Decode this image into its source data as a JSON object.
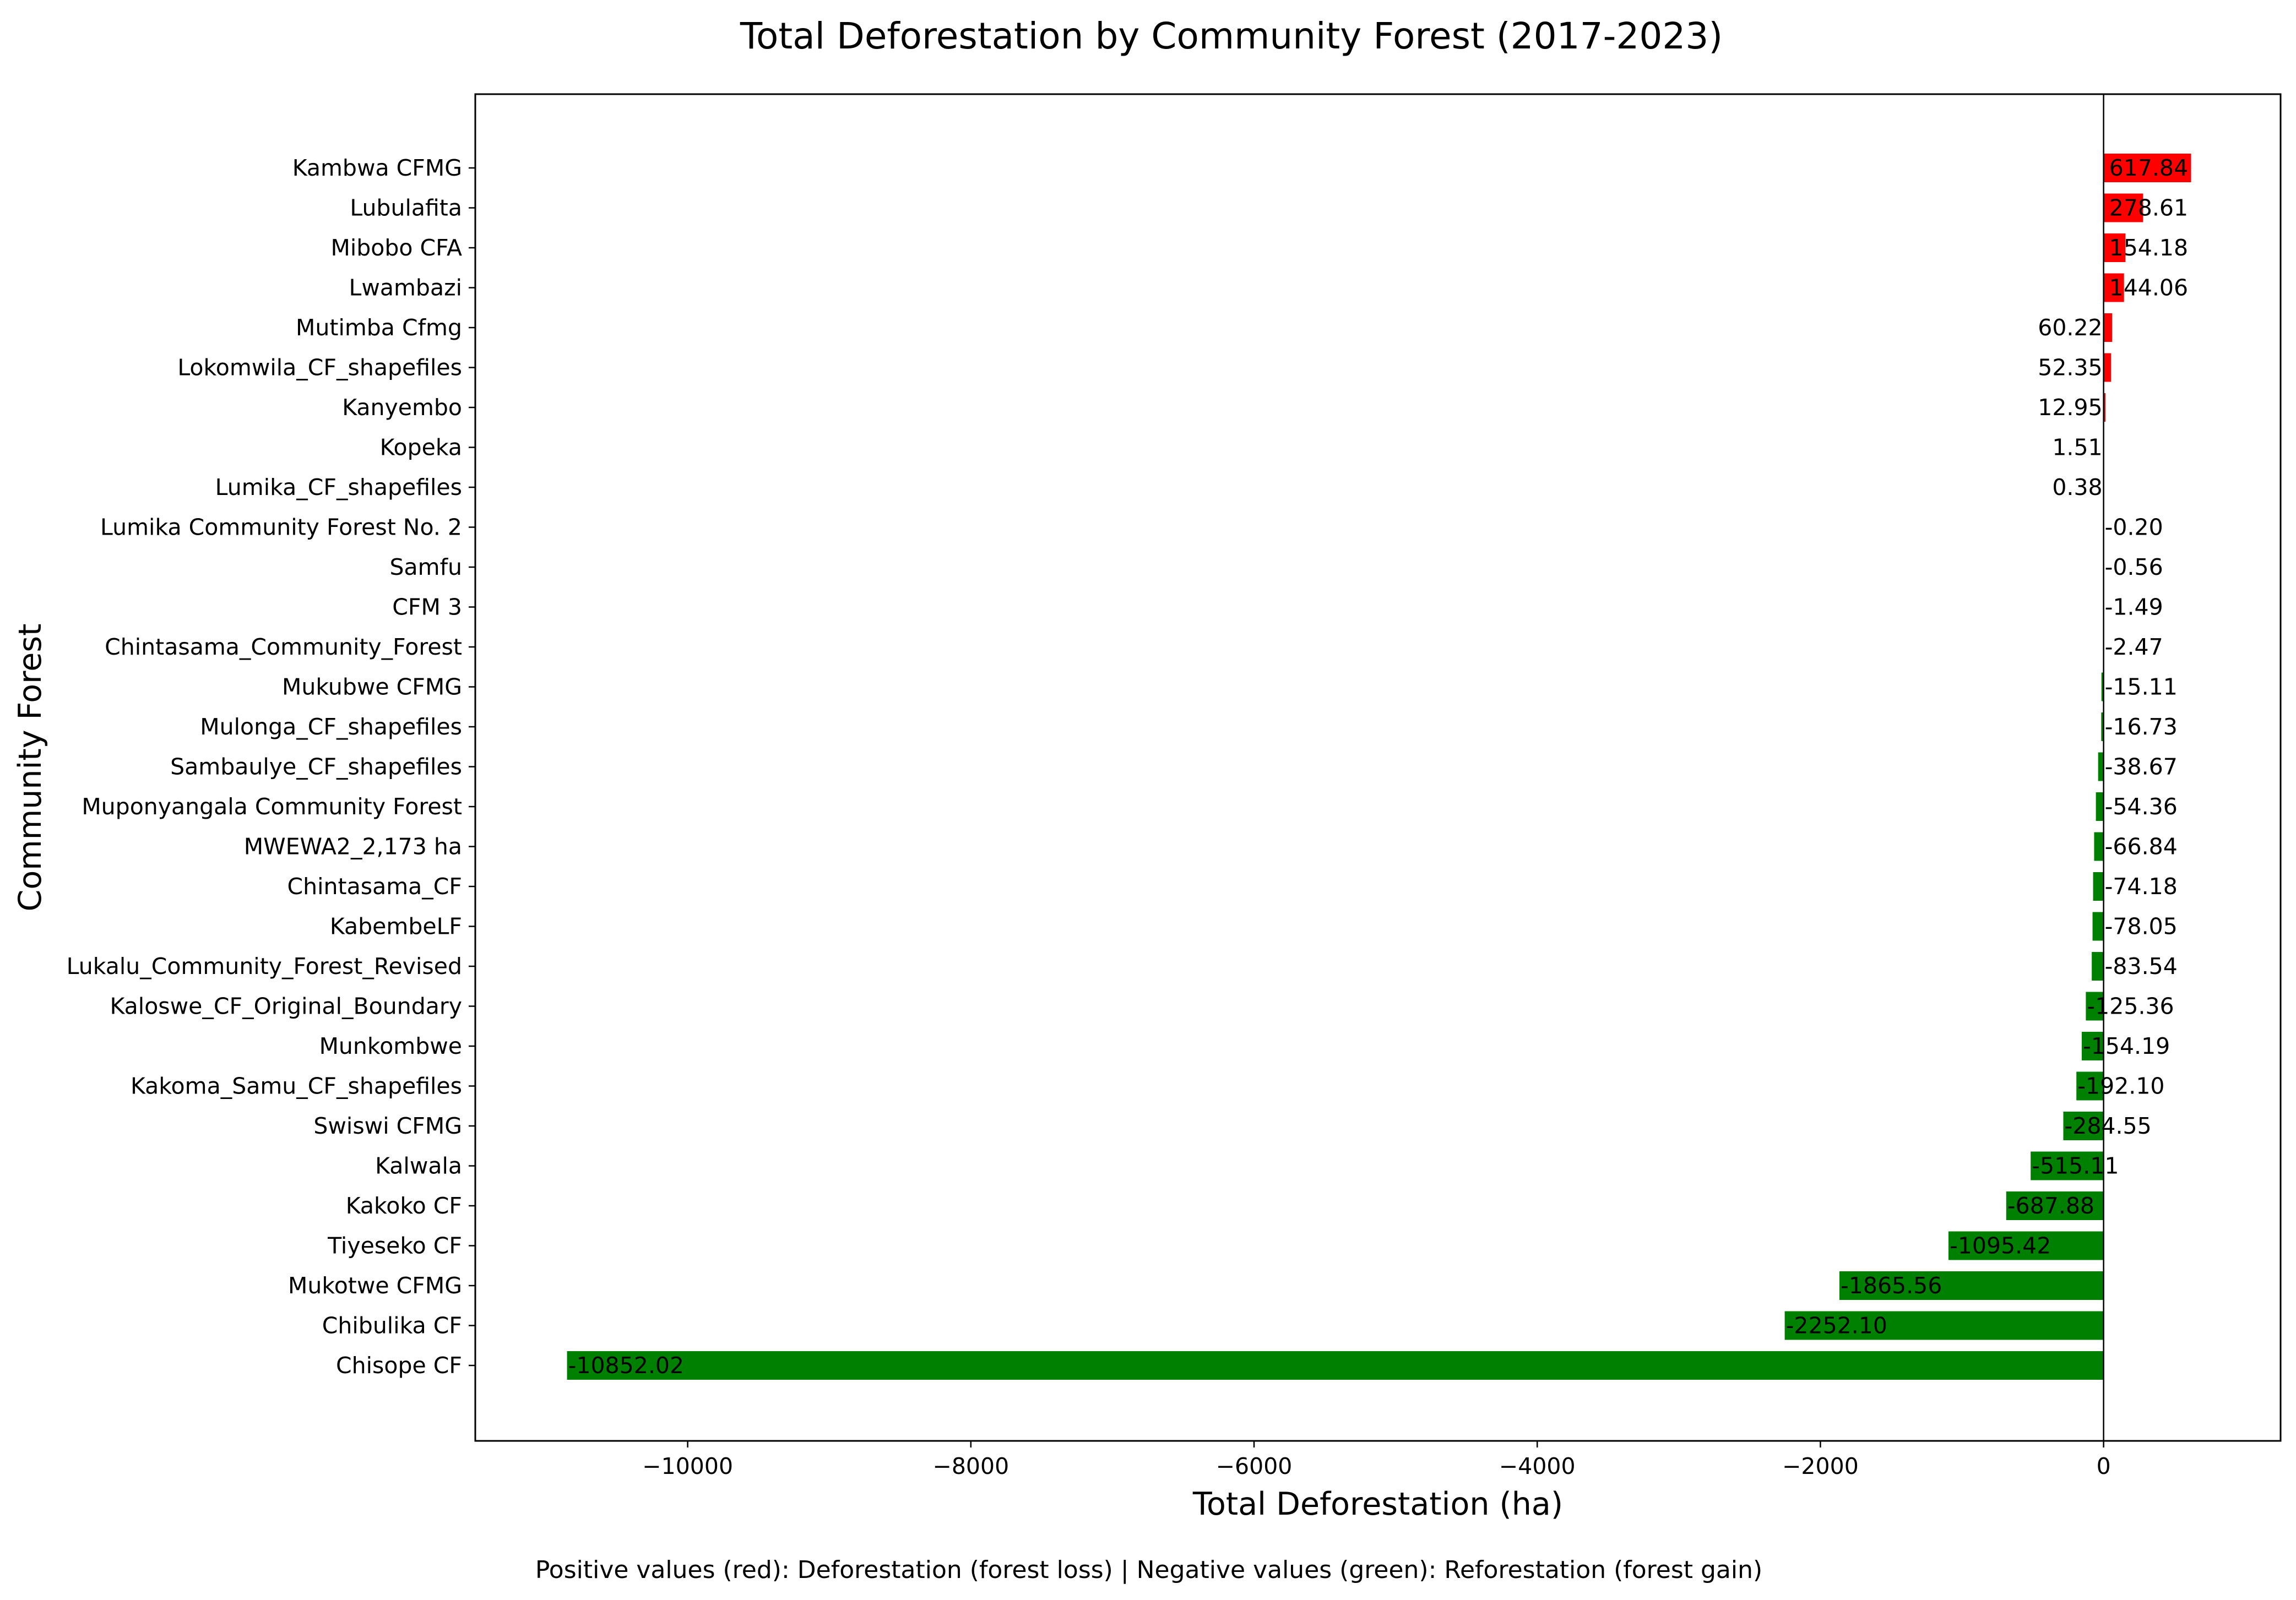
{
  "chart_data": {
    "type": "bar",
    "orientation": "horizontal",
    "title": "Total Deforestation by Community Forest (2017-2023)",
    "xlabel": "Total Deforestation (ha)",
    "ylabel": "Community Forest",
    "xlim": [
      -11500,
      1250
    ],
    "xticks": [
      -10000,
      -8000,
      -6000,
      -4000,
      -2000,
      0
    ],
    "xtick_labels": [
      "−10000",
      "−8000",
      "−6000",
      "−4000",
      "−2000",
      "0"
    ],
    "grid": false,
    "footnote": "Positive values (red): Deforestation (forest loss) | Negative values (green): Reforestation (forest gain)",
    "colors": {
      "positive": "#ff0000",
      "negative": "#008000",
      "zero_line": "#000000"
    },
    "categories": [
      "Kambwa CFMG",
      "Lubulafita",
      "Mibobo CFA",
      "Lwambazi",
      "Mutimba Cfmg",
      "Lokomwila_CF_shapefiles",
      "Kanyembo",
      "Kopeka",
      "Lumika_CF_shapefiles",
      "Lumika Community Forest No. 2",
      "Samfu",
      "CFM 3",
      "Chintasama_Community_Forest",
      "Mukubwe CFMG",
      "Mulonga_CF_shapefiles",
      "Sambaulye_CF_shapefiles",
      "Muponyangala Community Forest",
      "MWEWA2_2,173 ha",
      "Chintasama_CF",
      "KabembeLF",
      "Lukalu_Community_Forest_Revised",
      "Kaloswe_CF_Original_Boundary",
      "Munkombwe",
      "Kakoma_Samu_CF_shapefiles",
      "Swiswi CFMG",
      "Kalwala",
      "Kakoko CF",
      "Tiyeseko CF",
      "Mukotwe CFMG",
      "Chibulika CF",
      "Chisope CF"
    ],
    "values": [
      617.84,
      278.61,
      154.18,
      144.06,
      60.22,
      52.35,
      12.95,
      1.51,
      0.38,
      -0.2,
      -0.56,
      -1.49,
      -2.47,
      -15.11,
      -16.73,
      -38.67,
      -54.36,
      -66.84,
      -74.18,
      -78.05,
      -83.54,
      -125.36,
      -154.19,
      -192.1,
      -284.55,
      -515.11,
      -687.88,
      -1095.42,
      -1865.56,
      -2252.1,
      -10852.02
    ],
    "value_labels": [
      "617.84",
      "278.61",
      "154.18",
      "144.06",
      "60.22",
      "52.35",
      "12.95",
      "1.51",
      "0.38",
      "-0.20",
      "-0.56",
      "-1.49",
      "-2.47",
      "-15.11",
      "-16.73",
      "-38.67",
      "-54.36",
      "-66.84",
      "-74.18",
      "-78.05",
      "-83.54",
      "-125.36",
      "-154.19",
      "-192.10",
      "-284.55",
      "-515.11",
      "-687.88",
      "-1095.42",
      "-1865.56",
      "-2252.10",
      "-10852.02"
    ]
  }
}
